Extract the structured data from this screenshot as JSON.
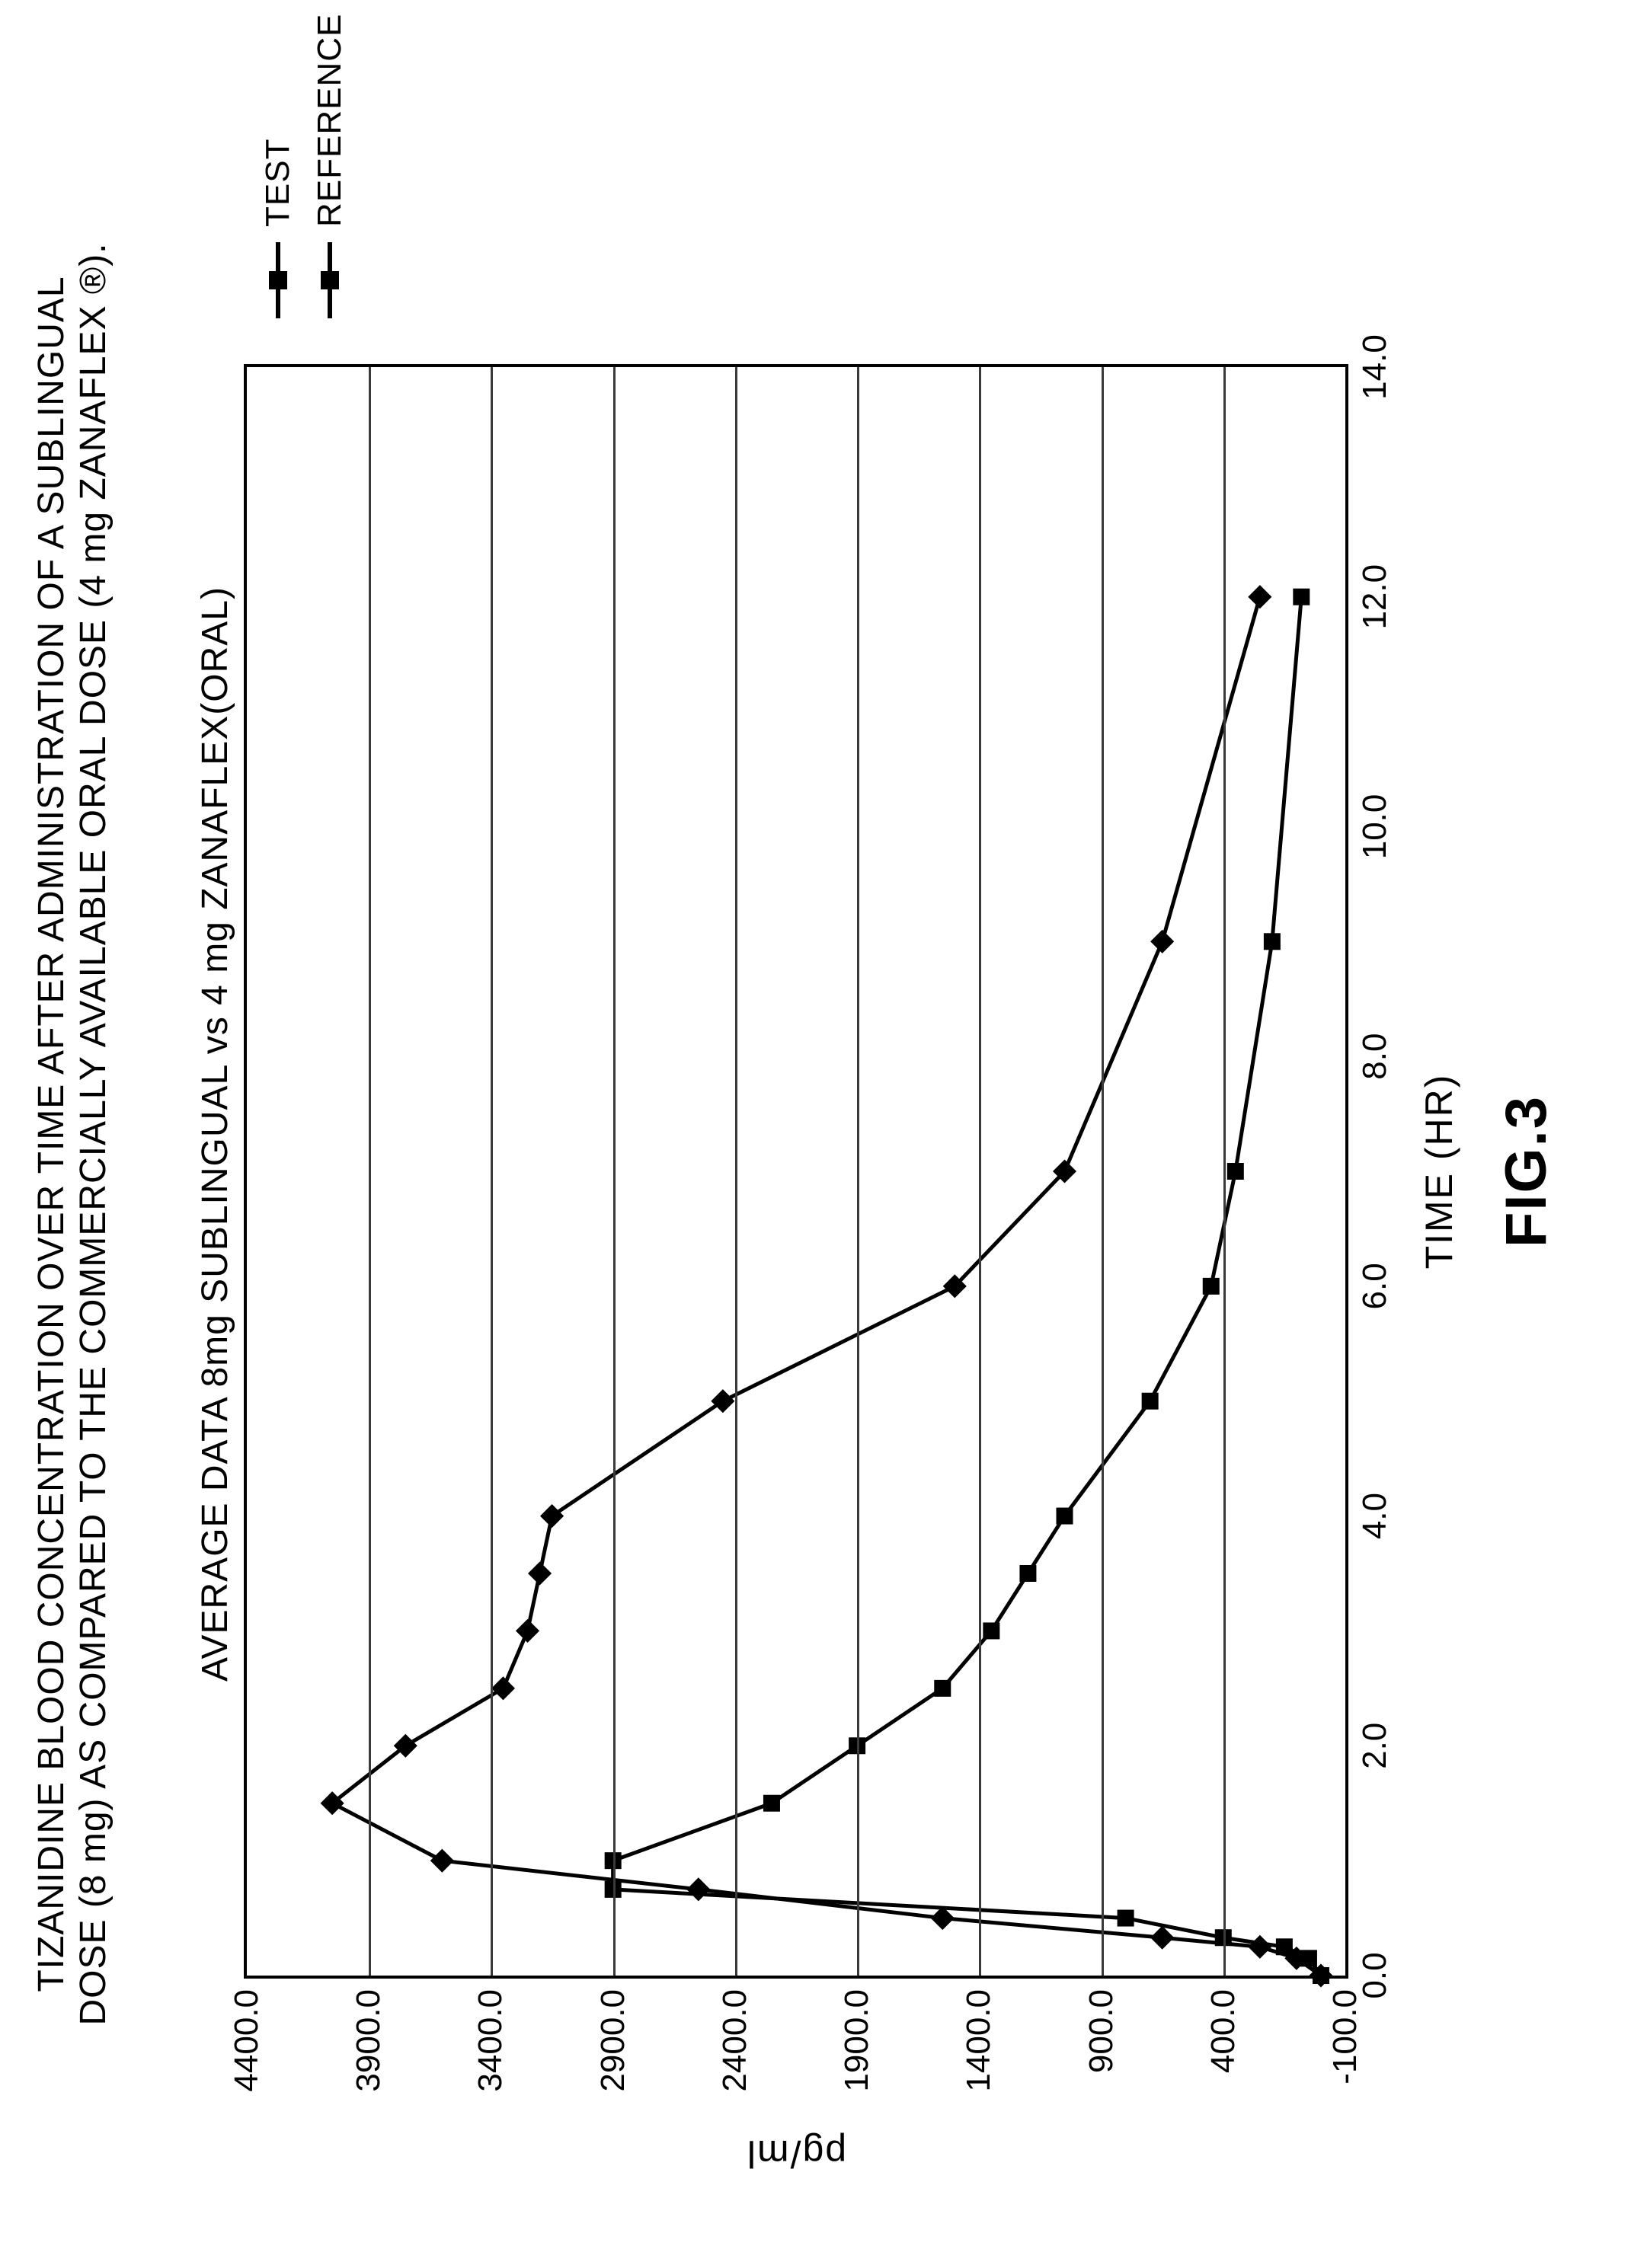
{
  "chart": {
    "type": "line",
    "main_title": "TIZANIDINE BLOOD CONCENTRATION OVER TIME AFTER ADMINISTRATION OF A SUBLINGUAL\nDOSE (8 mg) AS COMPARED TO THE COMMERCIALLY AVAILABLE ORAL DOSE (4 mg ZANAFLEX ®).",
    "sub_title": "AVERAGE DATA 8mg SUBLINGUAL vs 4 mg ZANAFLEX(ORAL)",
    "xlabel": "TIME (HR)",
    "ylabel": "pg/ml",
    "fig_label": "FIG.3",
    "title_fontsize": 48,
    "subtitle_fontsize": 48,
    "tick_fontsize": 44,
    "label_fontsize": 50,
    "figlabel_fontsize": 76,
    "legend_fontsize": 44,
    "xlim": [
      0.0,
      14.0
    ],
    "xtick_step": 2.0,
    "xticks": [
      "0.0",
      "2.0",
      "4.0",
      "6.0",
      "8.0",
      "10.0",
      "12.0",
      "14.0"
    ],
    "ylim": [
      -100.0,
      4400.0
    ],
    "ytick_step": 500.0,
    "yticks": [
      "-100.0",
      "400.0",
      "900.0",
      "1400.0",
      "1900.0",
      "2400.0",
      "2900.0",
      "3400.0",
      "3900.0",
      "4400.0"
    ],
    "background_color": "#ffffff",
    "border_color": "#000000",
    "grid_color": "#3a3a3a",
    "line_color": "#000000",
    "line_width": 5,
    "marker_size": 22,
    "series": {
      "test": {
        "label": "TEST",
        "marker": "diamond",
        "x": [
          0.0,
          0.15,
          0.25,
          0.33,
          0.5,
          0.75,
          1.0,
          1.5,
          2.0,
          2.5,
          3.0,
          3.5,
          4.0,
          5.0,
          6.0,
          7.0,
          9.0,
          12.0
        ],
        "y": [
          0,
          100,
          250,
          650,
          1550,
          2550,
          3600,
          4050,
          3750,
          3350,
          3250,
          3200,
          3150,
          2450,
          1500,
          1050,
          650,
          250
        ]
      },
      "reference": {
        "label": "REFERENCE",
        "marker": "square",
        "x": [
          0.0,
          0.15,
          0.25,
          0.33,
          0.5,
          0.75,
          1.0,
          1.5,
          2.0,
          2.5,
          3.0,
          3.5,
          4.0,
          5.0,
          6.0,
          7.0,
          9.0,
          12.0
        ],
        "y": [
          0,
          50,
          150,
          400,
          800,
          2900,
          2900,
          2250,
          1900,
          1550,
          1350,
          1200,
          1050,
          700,
          450,
          350,
          200,
          80
        ]
      }
    },
    "legend_position": "right"
  }
}
